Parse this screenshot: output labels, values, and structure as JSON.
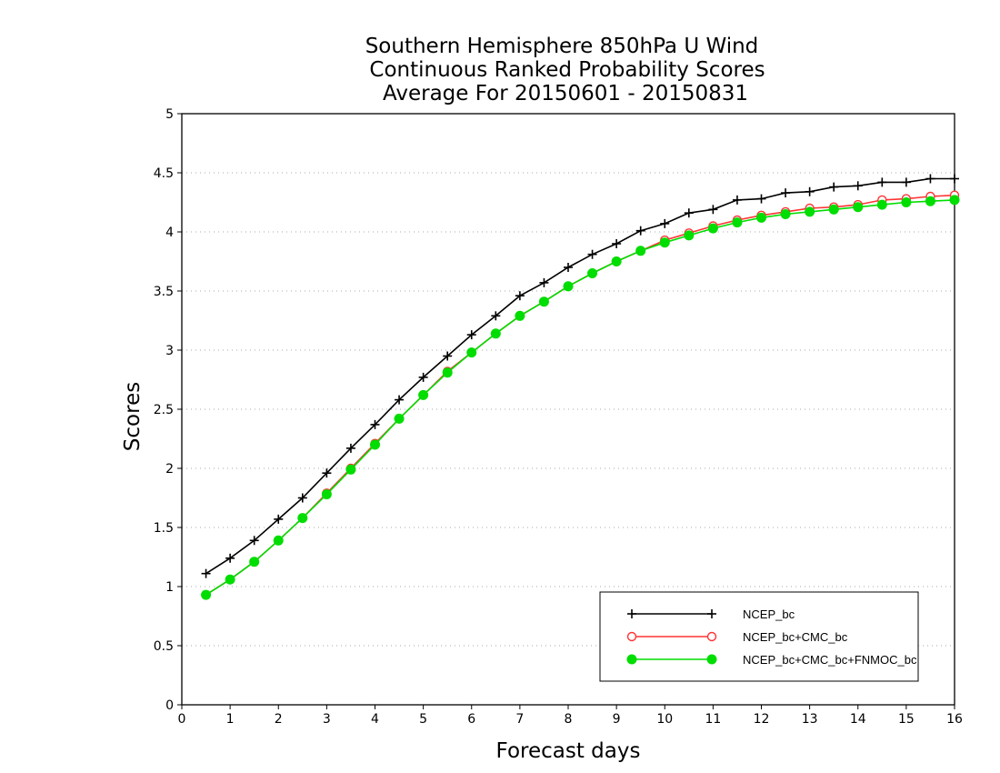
{
  "chart_data": {
    "type": "line",
    "title": [
      "Southern Hemisphere 850hPa U Wind",
      "Continuous Ranked Probability Scores",
      "Average For 20150601 - 20150831"
    ],
    "xlabel": "Forecast days",
    "ylabel": "Scores",
    "xlim": [
      0,
      16
    ],
    "ylim": [
      0,
      5
    ],
    "xticks": [
      0,
      1,
      2,
      3,
      4,
      5,
      6,
      7,
      8,
      9,
      10,
      11,
      12,
      13,
      14,
      15,
      16
    ],
    "yticks": [
      0,
      0.5,
      1,
      1.5,
      2,
      2.5,
      3,
      3.5,
      4,
      4.5,
      5
    ],
    "ytick_labels": [
      "0",
      "0.5",
      "1",
      "1.5",
      "2",
      "2.5",
      "3",
      "3.5",
      "4",
      "4.5",
      "5"
    ],
    "grid": "horizontal-dotted",
    "legend_position": "bottom-right",
    "x": [
      0.5,
      1,
      1.5,
      2,
      2.5,
      3,
      3.5,
      4,
      4.5,
      5,
      5.5,
      6,
      6.5,
      7,
      7.5,
      8,
      8.5,
      9,
      9.5,
      10,
      10.5,
      11,
      11.5,
      12,
      12.5,
      13,
      13.5,
      14,
      14.5,
      15,
      15.5,
      16
    ],
    "series": [
      {
        "name": "NCEP_bc",
        "color": "#000000",
        "marker": "plus",
        "values": [
          1.11,
          1.24,
          1.39,
          1.57,
          1.75,
          1.96,
          2.17,
          2.37,
          2.58,
          2.77,
          2.95,
          3.13,
          3.29,
          3.46,
          3.57,
          3.7,
          3.81,
          3.9,
          4.01,
          4.07,
          4.16,
          4.19,
          4.27,
          4.28,
          4.33,
          4.34,
          4.38,
          4.39,
          4.42,
          4.42,
          4.45,
          4.45
        ]
      },
      {
        "name": "NCEP_bc+CMC_bc",
        "color": "#ff3333",
        "marker": "open-circle",
        "values": [
          0.93,
          1.06,
          1.21,
          1.39,
          1.58,
          1.79,
          2.0,
          2.21,
          2.42,
          2.62,
          2.82,
          2.98,
          3.14,
          3.29,
          3.41,
          3.54,
          3.65,
          3.75,
          3.84,
          3.93,
          3.99,
          4.05,
          4.1,
          4.14,
          4.17,
          4.2,
          4.21,
          4.23,
          4.27,
          4.28,
          4.3,
          4.31
        ]
      },
      {
        "name": "NCEP_bc+CMC_bc+FNMOC_bc",
        "color": "#00dd00",
        "marker": "filled-circle",
        "values": [
          0.93,
          1.06,
          1.21,
          1.39,
          1.58,
          1.78,
          1.99,
          2.2,
          2.42,
          2.62,
          2.81,
          2.98,
          3.14,
          3.29,
          3.41,
          3.54,
          3.65,
          3.75,
          3.84,
          3.91,
          3.97,
          4.03,
          4.08,
          4.12,
          4.15,
          4.17,
          4.19,
          4.21,
          4.23,
          4.25,
          4.26,
          4.27
        ]
      }
    ]
  }
}
